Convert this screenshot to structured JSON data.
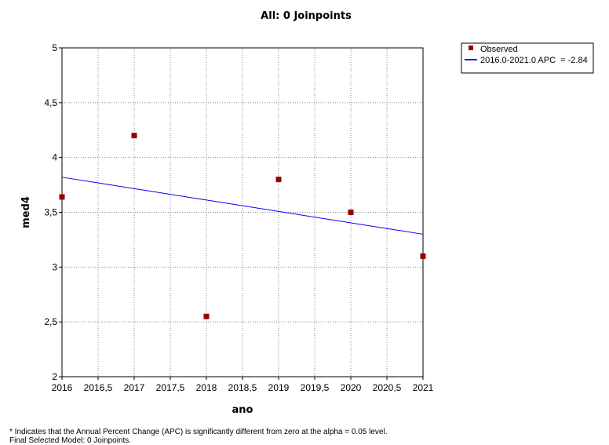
{
  "chart_data": {
    "type": "scatter",
    "title": "All: 0 Joinpoints",
    "xlabel": "ano",
    "ylabel": "med4",
    "xlim": [
      2016,
      2021
    ],
    "ylim": [
      2,
      5
    ],
    "xticks": [
      2016,
      2016.5,
      2017,
      2017.5,
      2018,
      2018.5,
      2019,
      2019.5,
      2020,
      2020.5,
      2021
    ],
    "xtick_labels": [
      "2016",
      "2016,5",
      "2017",
      "2017,5",
      "2018",
      "2018,5",
      "2019",
      "2019,5",
      "2020",
      "2020,5",
      "2021"
    ],
    "yticks": [
      2,
      2.5,
      3,
      3.5,
      4,
      4.5,
      5
    ],
    "ytick_labels": [
      "2",
      "2,5",
      "3",
      "3,5",
      "4",
      "4,5",
      "5"
    ],
    "grid": true,
    "legend_position": "top-right",
    "series": [
      {
        "name": "Observed",
        "kind": "markers",
        "color": "#990000",
        "x": [
          2016,
          2017,
          2018,
          2019,
          2020,
          2021
        ],
        "y": [
          3.64,
          4.2,
          2.55,
          3.8,
          3.5,
          3.1
        ]
      },
      {
        "name": "2016.0-2021.0 APC  = -2.84",
        "kind": "line",
        "color": "#0000ff",
        "x": [
          2016,
          2021
        ],
        "y": [
          3.82,
          3.3
        ]
      }
    ]
  },
  "footnotes": {
    "line1": "* Indicates that the Annual Percent Change (APC) is significantly different from zero at the alpha = 0.05 level.",
    "line2": "Final Selected Model: 0 Joinpoints."
  }
}
